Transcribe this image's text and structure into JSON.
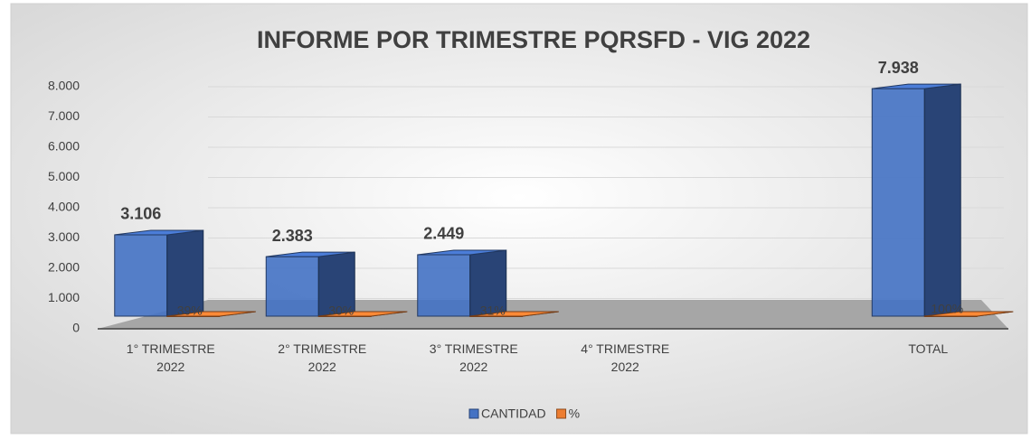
{
  "chart_data": {
    "type": "bar3d",
    "title": "INFORME POR TRIMESTRE PQRSFD - VIG 2022",
    "categories": [
      "1° TRIMESTRE 2022",
      "2° TRIMESTRE 2022",
      "3° TRIMESTRE 2022",
      "4° TRIMESTRE 2022",
      null,
      "TOTAL"
    ],
    "series": [
      {
        "name": "CANTIDAD",
        "color": "#4472c4",
        "values": [
          3106,
          2383,
          2449,
          null,
          null,
          7938
        ],
        "value_labels": [
          "3.106",
          "2.383",
          "2.449",
          null,
          null,
          "7.938"
        ]
      },
      {
        "name": "%",
        "color": "#ed7d31",
        "values": [
          39,
          30,
          31,
          null,
          null,
          100
        ],
        "value_labels": [
          "39%",
          "30%",
          "31%",
          null,
          null,
          "100%"
        ]
      }
    ],
    "ylim": [
      0,
      8000
    ],
    "yticks": [
      0,
      {
        "value": 1000,
        "label": "1.000"
      },
      {
        "value": 2000,
        "label": "2.000"
      },
      {
        "value": 3000,
        "label": "3.000"
      },
      {
        "value": 4000,
        "label": "4.000"
      },
      {
        "value": 5000,
        "label": "5.000"
      },
      {
        "value": 6000,
        "label": "6.000"
      },
      {
        "value": 7000,
        "label": "7.000"
      },
      {
        "value": 8000,
        "label": "8.000"
      }
    ],
    "grid": true,
    "legend": "bottom"
  }
}
